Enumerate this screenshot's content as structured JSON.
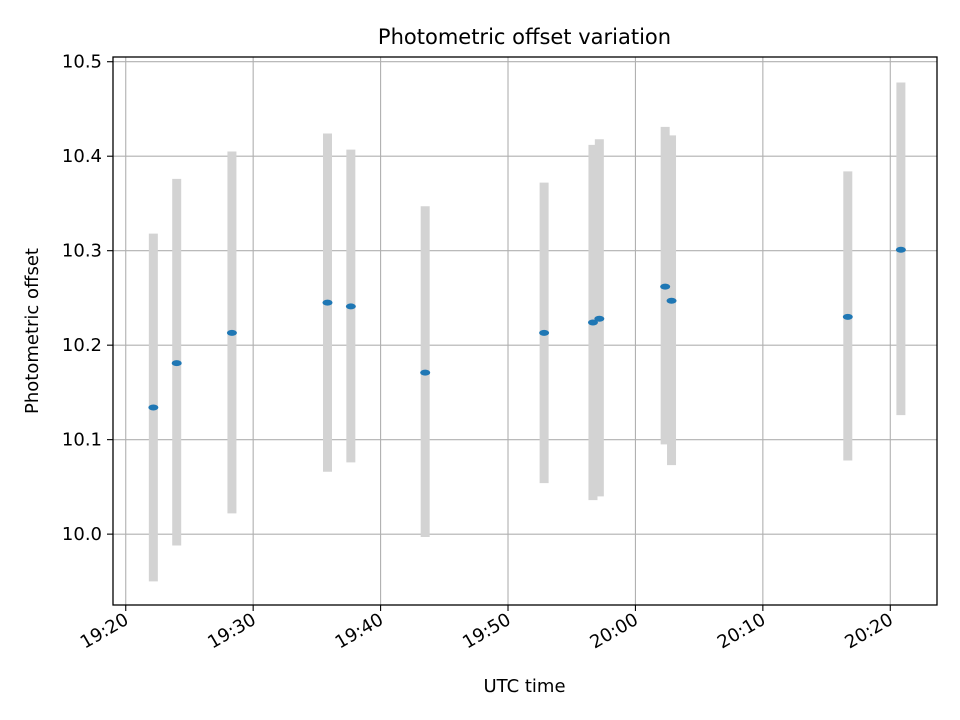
{
  "chart_data": {
    "type": "scatter",
    "title": "Photometric offset variation",
    "xlabel": "UTC time",
    "ylabel": "Photometric offset",
    "xlim": [
      "19:19:00",
      "20:23:40"
    ],
    "ylim": [
      9.925,
      10.505
    ],
    "x_ticks": [
      "19:20",
      "19:30",
      "19:40",
      "19:50",
      "20:00",
      "20:10",
      "20:20"
    ],
    "y_ticks": [
      "10.0",
      "10.1",
      "10.2",
      "10.3",
      "10.4",
      "10.5"
    ],
    "grid": true,
    "marker_color": "#1f77b4",
    "errorbar_color": "#d3d3d3",
    "series": [
      {
        "points": [
          {
            "x": "19:22:10",
            "y": 10.134,
            "ylow": 9.95,
            "yhigh": 10.318
          },
          {
            "x": "19:24:00",
            "y": 10.181,
            "ylow": 9.988,
            "yhigh": 10.376
          },
          {
            "x": "19:28:20",
            "y": 10.213,
            "ylow": 10.022,
            "yhigh": 10.405
          },
          {
            "x": "19:35:50",
            "y": 10.245,
            "ylow": 10.066,
            "yhigh": 10.424
          },
          {
            "x": "19:37:40",
            "y": 10.241,
            "ylow": 10.076,
            "yhigh": 10.407
          },
          {
            "x": "19:43:30",
            "y": 10.171,
            "ylow": 9.997,
            "yhigh": 10.347
          },
          {
            "x": "19:52:50",
            "y": 10.213,
            "ylow": 10.054,
            "yhigh": 10.372
          },
          {
            "x": "19:56:40",
            "y": 10.224,
            "ylow": 10.036,
            "yhigh": 10.412
          },
          {
            "x": "19:57:10",
            "y": 10.228,
            "ylow": 10.04,
            "yhigh": 10.418
          },
          {
            "x": "20:02:20",
            "y": 10.262,
            "ylow": 10.095,
            "yhigh": 10.431
          },
          {
            "x": "20:02:50",
            "y": 10.247,
            "ylow": 10.073,
            "yhigh": 10.422
          },
          {
            "x": "20:16:40",
            "y": 10.23,
            "ylow": 10.078,
            "yhigh": 10.384
          },
          {
            "x": "20:20:50",
            "y": 10.301,
            "ylow": 10.126,
            "yhigh": 10.478
          }
        ]
      }
    ]
  }
}
